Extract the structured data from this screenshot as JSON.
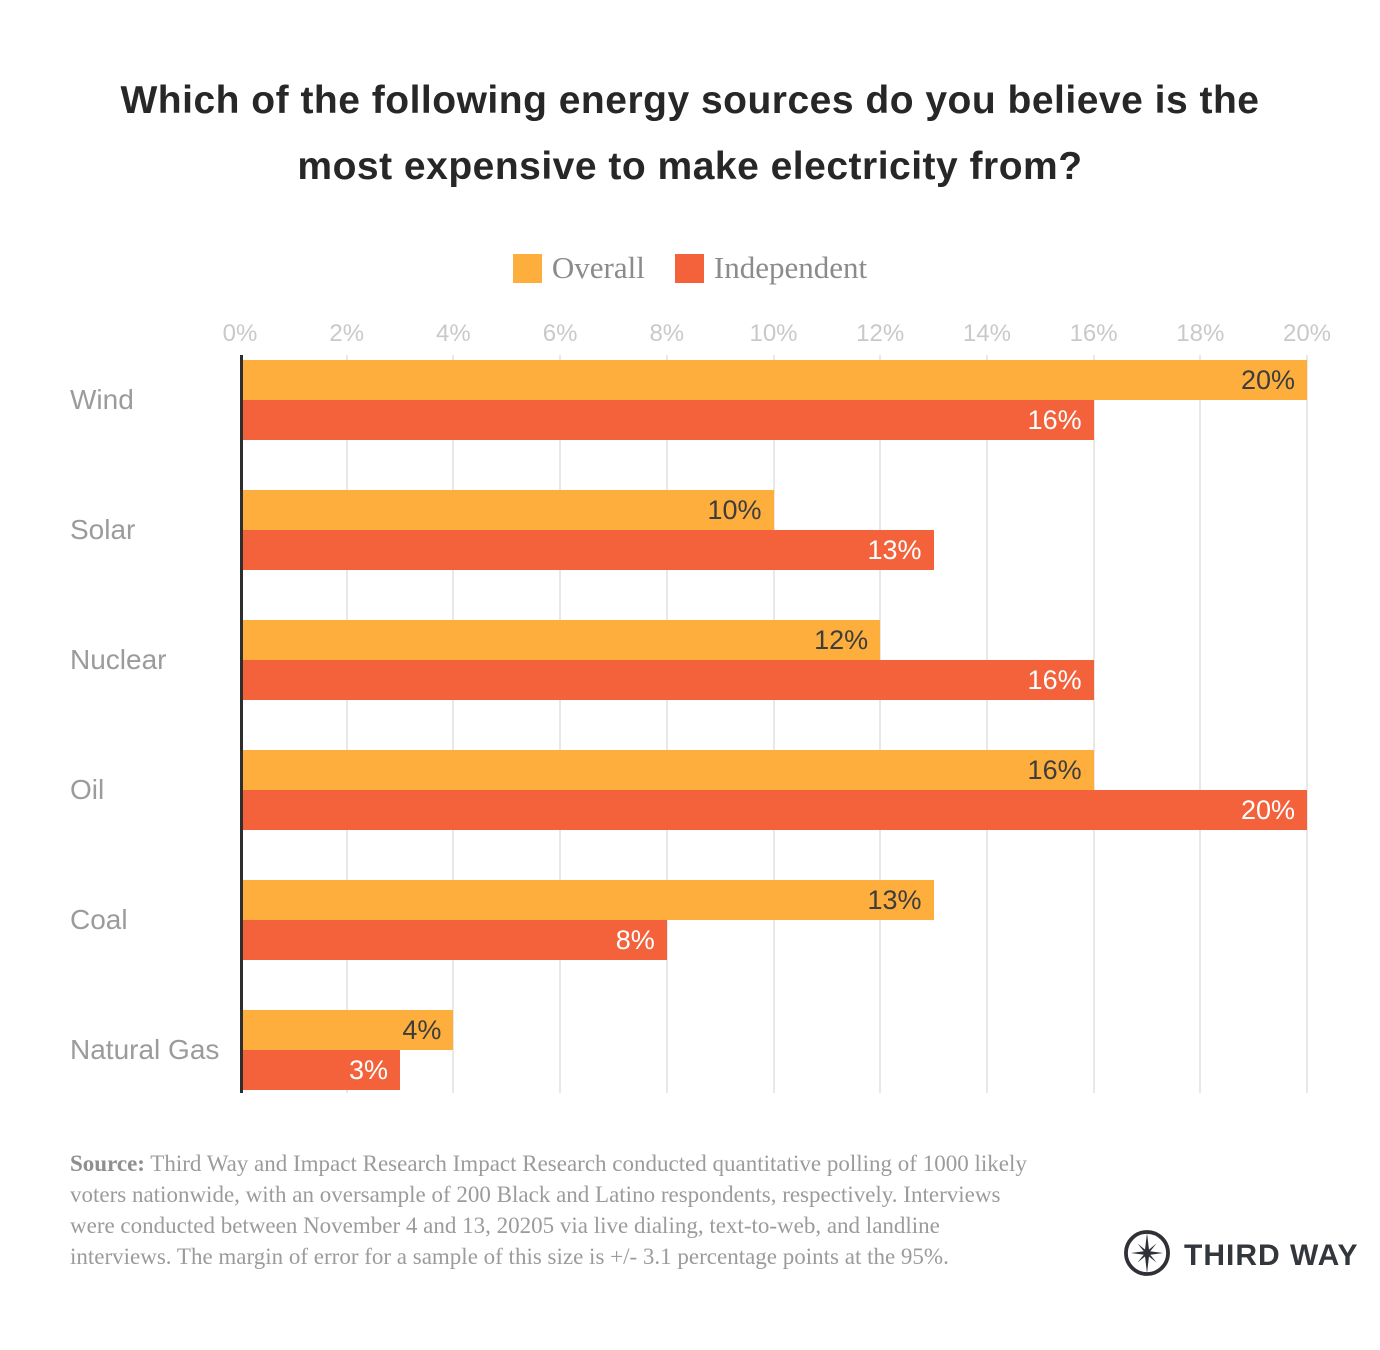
{
  "title": {
    "lines": [
      "Which of the following energy sources do you believe is the",
      "most expensive to make electricity from?"
    ]
  },
  "legend": [
    {
      "label": "Overall",
      "color": "#FDAE3D"
    },
    {
      "label": "Independent",
      "color": "#F3623B"
    }
  ],
  "chart_data": {
    "type": "bar",
    "orientation": "horizontal",
    "title": "Which of the following energy sources do you believe is the most expensive to make electricity from?",
    "categories": [
      "Wind",
      "Solar",
      "Nuclear",
      "Oil",
      "Coal",
      "Natural Gas"
    ],
    "series": [
      {
        "name": "Overall",
        "color": "#FDAE3D",
        "label_color": "#3d3d3d",
        "values": [
          20,
          10,
          12,
          16,
          13,
          4
        ]
      },
      {
        "name": "Independent",
        "color": "#F3623B",
        "label_color": "#ffffff",
        "values": [
          16,
          13,
          16,
          20,
          8,
          3
        ]
      }
    ],
    "value_suffix": "%",
    "x_ticks": [
      "0%",
      "2%",
      "4%",
      "6%",
      "8%",
      "10%",
      "12%",
      "14%",
      "16%",
      "18%",
      "20%"
    ],
    "xlim": [
      0,
      20
    ],
    "grid": true,
    "legend_position": "top"
  },
  "footer": {
    "source_label": "Source:",
    "source_text": " Third Way and Impact Research Impact Research conducted quantitative polling of 1000 likely voters nationwide, with an oversample of 200 Black and Latino respondents, respectively. Interviews were conducted between November 4 and 13, 20205 via live dialing, text-to-web, and landline interviews. The margin of error for a sample of this size is +/- 3.1 percentage points at the 95%.",
    "logo_text": "THIRD WAY"
  }
}
